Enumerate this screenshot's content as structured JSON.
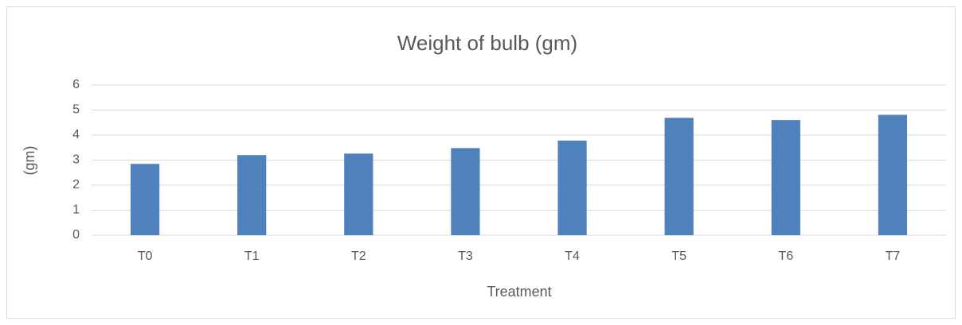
{
  "chart_data": {
    "type": "bar",
    "title": "Weight of bulb (gm)",
    "x_label": "Treatment",
    "y_label": "(gm)",
    "categories": [
      "T0",
      "T1",
      "T2",
      "T3",
      "T4",
      "T5",
      "T6",
      "T7"
    ],
    "values": [
      2.85,
      3.2,
      3.26,
      3.48,
      3.78,
      4.69,
      4.6,
      4.81
    ],
    "color": "#4f81bd",
    "ylim": [
      0,
      6
    ],
    "yticks": [
      0,
      1,
      2,
      3,
      4,
      5,
      6
    ],
    "grid": true
  }
}
